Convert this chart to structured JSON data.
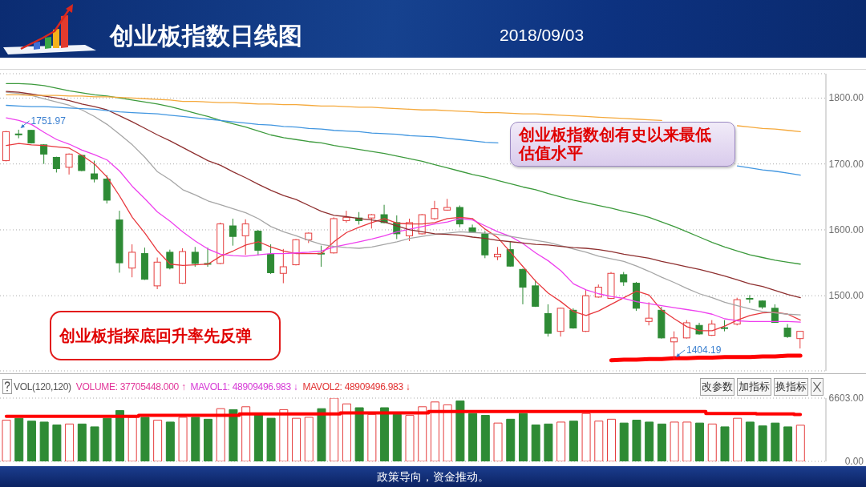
{
  "chart_data": [
    {
      "type": "candlestick",
      "title": "创业板指数日线图",
      "subtitle": "2018/09/03",
      "categories": [
        null,
        null,
        null,
        null,
        null,
        null,
        null,
        null,
        null,
        null,
        null,
        null,
        null,
        null,
        null,
        null,
        null,
        null,
        null,
        null,
        null,
        null,
        null,
        null,
        null,
        null,
        null,
        null,
        null,
        null,
        null,
        null,
        null,
        null,
        null,
        null,
        null,
        null,
        null,
        null,
        null,
        null,
        null,
        null,
        null,
        null,
        null,
        null,
        null,
        null,
        null,
        null,
        null,
        null,
        null,
        null,
        null,
        null,
        null,
        null,
        null,
        null,
        null,
        null
      ],
      "ohlc": [
        [
          1705,
          1750,
          1704,
          1749
        ],
        [
          1745.5,
          1751.97,
          1739,
          1745
        ],
        [
          1751,
          1751.5,
          1731,
          1732
        ],
        [
          1729,
          1730,
          1700,
          1715
        ],
        [
          1710,
          1711,
          1687,
          1693
        ],
        [
          1695,
          1716,
          1684,
          1715
        ],
        [
          1713,
          1714,
          1689,
          1690
        ],
        [
          1685,
          1705,
          1672,
          1677
        ],
        [
          1677,
          1683,
          1640,
          1645
        ],
        [
          1615,
          1629,
          1535,
          1550
        ],
        [
          1542,
          1578,
          1528,
          1566
        ],
        [
          1564,
          1573,
          1524,
          1525
        ],
        [
          1515,
          1558,
          1510,
          1551
        ],
        [
          1566,
          1570,
          1540,
          1542
        ],
        [
          1519,
          1572,
          1518,
          1567
        ],
        [
          1566,
          1574,
          1544,
          1549
        ],
        [
          1549,
          1573,
          1544,
          1548
        ],
        [
          1549,
          1611,
          1548,
          1609
        ],
        [
          1606,
          1617,
          1576,
          1590
        ],
        [
          1591,
          1616,
          1562,
          1609
        ],
        [
          1598,
          1600,
          1561,
          1569
        ],
        [
          1563,
          1578,
          1533,
          1535
        ],
        [
          1534,
          1571,
          1519,
          1544
        ],
        [
          1547,
          1586,
          1546,
          1585
        ],
        [
          1585,
          1596,
          1580,
          1595
        ],
        [
          1564.5,
          1576,
          1544,
          1564
        ],
        [
          1565,
          1619,
          1564,
          1617
        ],
        [
          1614,
          1629,
          1611,
          1619
        ],
        [
          1618,
          1627,
          1608,
          1614
        ],
        [
          1618,
          1624,
          1602,
          1623
        ],
        [
          1623,
          1638,
          1610,
          1611
        ],
        [
          1611,
          1622,
          1586,
          1594
        ],
        [
          1591,
          1617,
          1583,
          1611
        ],
        [
          1594,
          1624,
          1593,
          1623
        ],
        [
          1617,
          1644,
          1615,
          1632
        ],
        [
          1630,
          1647,
          1629,
          1634
        ],
        [
          1634,
          1637,
          1604,
          1609
        ],
        [
          1603,
          1608,
          1596,
          1596.5
        ],
        [
          1594,
          1598,
          1557,
          1562
        ],
        [
          1559,
          1574,
          1554,
          1563
        ],
        [
          1570,
          1582,
          1544,
          1545
        ],
        [
          1540,
          1541,
          1487,
          1513
        ],
        [
          1515,
          1524,
          1483,
          1484
        ],
        [
          1473,
          1487,
          1438,
          1443
        ],
        [
          1446,
          1482,
          1438,
          1481
        ],
        [
          1478,
          1481,
          1450,
          1451
        ],
        [
          1446,
          1509,
          1445,
          1500
        ],
        [
          1498,
          1517,
          1497,
          1513
        ],
        [
          1496,
          1536,
          1495,
          1534
        ],
        [
          1532,
          1536,
          1515,
          1521
        ],
        [
          1519,
          1521,
          1477,
          1481
        ],
        [
          1461,
          1490,
          1455,
          1466
        ],
        [
          1478,
          1483,
          1435,
          1436
        ],
        [
          1430,
          1446,
          1404.19,
          1436
        ],
        [
          1436,
          1463,
          1435,
          1459
        ],
        [
          1455,
          1459,
          1441,
          1442
        ],
        [
          1440,
          1463,
          1439,
          1457
        ],
        [
          1451.5,
          1463,
          1446,
          1451
        ],
        [
          1457,
          1497,
          1455,
          1494
        ],
        [
          1496,
          1501,
          1489,
          1495.5
        ],
        [
          1492,
          1493,
          1480,
          1483
        ],
        [
          1481,
          1487,
          1459,
          1459.5
        ],
        [
          1451,
          1457,
          1436,
          1438
        ],
        [
          1435,
          1446,
          1420,
          1446
        ]
      ],
      "colors": [
        "#e53e3e",
        "#2e8b35",
        "#2e8b35",
        "#2e8b35",
        "#2e8b35",
        "#e53e3e",
        "#2e8b35",
        "#2e8b35",
        "#2e8b35",
        "#2e8b35",
        "#e53e3e",
        "#2e8b35",
        "#e53e3e",
        "#2e8b35",
        "#e53e3e",
        "#2e8b35",
        "#2e8b35",
        "#e53e3e",
        "#2e8b35",
        "#e53e3e",
        "#2e8b35",
        "#2e8b35",
        "#e53e3e",
        "#e53e3e",
        "#e53e3e",
        "#2e8b35",
        "#e53e3e",
        "#e53e3e",
        "#2e8b35",
        "#e53e3e",
        "#2e8b35",
        "#2e8b35",
        "#e53e3e",
        "#e53e3e",
        "#e53e3e",
        "#e53e3e",
        "#2e8b35",
        "#2e8b35",
        "#2e8b35",
        "#e53e3e",
        "#2e8b35",
        "#2e8b35",
        "#2e8b35",
        "#2e8b35",
        "#e53e3e",
        "#2e8b35",
        "#e53e3e",
        "#e53e3e",
        "#e53e3e",
        "#2e8b35",
        "#2e8b35",
        "#e53e3e",
        "#2e8b35",
        "#e53e3e",
        "#e53e3e",
        "#2e8b35",
        "#e53e3e",
        "#2e8b35",
        "#e53e3e",
        "#2e8b35",
        "#2e8b35",
        "#2e8b35",
        "#2e8b35",
        "#e53e3e"
      ],
      "series": [
        {
          "type": "line",
          "color": "#e8383d",
          "values": [
            1728,
            1731,
            1729,
            1728,
            1726,
            1724,
            1713,
            1700,
            1680,
            1651,
            1619,
            1595,
            1568,
            1548,
            1546,
            1547,
            1548,
            1560,
            1568,
            1577,
            1582,
            1574,
            1568,
            1564,
            1564,
            1564,
            1582,
            1596,
            1604,
            1611,
            1617,
            1610,
            1609,
            1609,
            1611,
            1617,
            1619,
            1617,
            1601,
            1588,
            1566,
            1544,
            1522,
            1504,
            1491,
            1476,
            1470,
            1477,
            1487,
            1497,
            1507,
            1501,
            1478,
            1465,
            1453,
            1447,
            1447,
            1454,
            1463,
            1470,
            1474,
            1475,
            1472,
            1463
          ]
        },
        {
          "type": "line",
          "color": "#ee40ee",
          "values": [
            1770,
            1766,
            1760,
            1748,
            1737,
            1730,
            1721,
            1714,
            1706,
            1689,
            1666,
            1647,
            1627,
            1613,
            1597,
            1583,
            1571,
            1563,
            1561,
            1560,
            1562,
            1564,
            1564,
            1565,
            1566,
            1568,
            1574,
            1578,
            1582,
            1586,
            1591,
            1597,
            1601,
            1605,
            1609,
            1612,
            1617,
            1615,
            1606,
            1597,
            1590,
            1579,
            1565,
            1553,
            1538,
            1518,
            1509,
            1503,
            1499,
            1496,
            1491,
            1488,
            1485,
            1482,
            1479,
            1476,
            1472,
            1465,
            1462,
            1461,
            1461,
            1461,
            1461,
            1460
          ]
        },
        {
          "type": "line",
          "color": "#a6a6a6",
          "values": [
            1809,
            1807,
            1804,
            1799,
            1794,
            1789,
            1782,
            1772,
            1760,
            1745,
            1729,
            1710,
            1688,
            1676,
            1661,
            1653,
            1644,
            1638,
            1632,
            1626,
            1617,
            1605,
            1597,
            1591,
            1584,
            1578,
            1575,
            1573,
            1572,
            1574,
            1578,
            1582,
            1587,
            1590,
            1593,
            1595,
            1597,
            1596,
            1595,
            1593,
            1590,
            1587,
            1584,
            1581,
            1576,
            1571,
            1566,
            1560,
            1556,
            1552,
            1545,
            1537,
            1528,
            1520,
            1511,
            1503,
            1497,
            1490,
            1485,
            1480,
            1476,
            1474,
            1472,
            1471
          ]
        },
        {
          "type": "line",
          "color": "#8e2f2f",
          "values": [
            1810,
            1809,
            1806,
            1803,
            1800,
            1796,
            1791,
            1787,
            1782,
            1773,
            1764,
            1754,
            1744,
            1735,
            1725,
            1715,
            1705,
            1698,
            1688,
            1679,
            1669,
            1660,
            1652,
            1646,
            1637,
            1628,
            1622,
            1620,
            1617,
            1615,
            1612,
            1606,
            1600,
            1597,
            1594,
            1593,
            1592,
            1589,
            1587,
            1584,
            1582,
            1580,
            1578,
            1577,
            1575,
            1573,
            1572,
            1570,
            1567,
            1563,
            1560,
            1557,
            1552,
            1548,
            1544,
            1540,
            1535,
            1530,
            1524,
            1518,
            1514,
            1508,
            1502,
            1497
          ]
        },
        {
          "type": "line",
          "color": "#3c9a3c",
          "values": [
            1822,
            1822,
            1821,
            1819,
            1815,
            1811,
            1808,
            1805,
            1803,
            1800,
            1797,
            1794,
            1791,
            1787,
            1782,
            1777,
            1772,
            1766,
            1761,
            1756,
            1750,
            1744,
            1740,
            1737,
            1734,
            1732,
            1728,
            1725,
            1722,
            1719,
            1716,
            1712,
            1708,
            1704,
            1699,
            1694,
            1689,
            1684,
            1680,
            1675,
            1670,
            1665,
            1661,
            1655,
            1650,
            1645,
            1641,
            1637,
            1633,
            1628,
            1624,
            1619,
            1612,
            1605,
            1597,
            1589,
            1581,
            1574,
            1568,
            1562,
            1558,
            1554,
            1551,
            1548
          ]
        },
        {
          "type": "line",
          "color": "#4196e0",
          "values": [
            1789,
            1788,
            1787,
            1787,
            1786,
            1785,
            1784,
            1783,
            1781,
            1779,
            1778,
            1777,
            1776,
            1774,
            1772,
            1770,
            1768,
            1766,
            1764,
            1762,
            1760,
            1759,
            1757,
            1756,
            1754,
            1753,
            1751,
            1750,
            1749,
            1747,
            1746,
            1745,
            1743,
            1742,
            1741,
            1739,
            1737,
            1735,
            1733,
            1732,
            null,
            null,
            null,
            null,
            null,
            null,
            null,
            null,
            null,
            null,
            null,
            null,
            null,
            null,
            null,
            null,
            null,
            null,
            1697,
            1694,
            1691,
            1689,
            1686,
            1683
          ]
        },
        {
          "type": "line",
          "color": "#f5a93c",
          "values": [
            1805,
            1805,
            1804,
            1804,
            1804,
            1803,
            1803,
            1802,
            1802,
            1801,
            1800,
            1799,
            1798,
            1797,
            1795,
            1795,
            1794,
            1793,
            1793,
            1792,
            1791,
            1791,
            1790,
            1790,
            1789,
            1788,
            1788,
            1787,
            1786,
            1786,
            1785,
            1784,
            1783,
            1782,
            1782,
            1781,
            1780,
            1779,
            1778,
            1778,
            1777,
            1776,
            1776,
            1775,
            1774,
            1773,
            1772,
            1771,
            1770,
            1769,
            1768,
            1767,
            1766,
            null,
            null,
            null,
            null,
            null,
            1758,
            1756,
            1754,
            1753,
            1751,
            1749
          ]
        },
        {
          "type": "line",
          "color": "#ff0000",
          "values": [
            null,
            null,
            null,
            null,
            null,
            null,
            null,
            null,
            null,
            null,
            null,
            null,
            null,
            null,
            null,
            null,
            null,
            null,
            null,
            null,
            null,
            null,
            null,
            null,
            null,
            null,
            null,
            null,
            null,
            null,
            null,
            null,
            null,
            null,
            null,
            null,
            null,
            null,
            null,
            null,
            null,
            null,
            null,
            null,
            null,
            null,
            null,
            null,
            1402,
            1403,
            1403,
            1404,
            1404,
            1405,
            1405,
            1406,
            1406,
            1407,
            1407,
            1407,
            1408,
            1408,
            1409,
            1409
          ]
        }
      ],
      "ylim": [
        1386,
        1837
      ],
      "yticks": [
        {
          "value": 1500,
          "label": "1500.00"
        },
        {
          "value": 1600,
          "label": "1600.00"
        },
        {
          "value": 1700,
          "label": "1700.00"
        },
        {
          "value": 1800,
          "label": "1800.00"
        }
      ],
      "grid": "y",
      "tick_labels": "y",
      "annotations": [
        {
          "text": "1751.97",
          "y": 1751.97
        },
        {
          "text": "1404.19",
          "y": 1404.19
        },
        "创业板指数创有史以来最低估值水平",
        "创业板指探底回升率先反弹",
        "政策导向，资金推动。"
      ]
    },
    {
      "type": "bar",
      "categories": [
        null,
        null,
        null,
        null,
        null,
        null,
        null,
        null,
        null,
        null,
        null,
        null,
        null,
        null,
        null,
        null,
        null,
        null,
        null,
        null,
        null,
        null,
        null,
        null,
        null,
        null,
        null,
        null,
        null,
        null,
        null,
        null,
        null,
        null,
        null,
        null,
        null,
        null,
        null,
        null,
        null,
        null,
        null,
        null,
        null,
        null,
        null,
        null,
        null,
        null,
        null,
        null,
        null,
        null,
        null,
        null,
        null,
        null,
        null,
        null,
        null,
        null,
        null,
        null
      ],
      "series": [
        {
          "type": "bar",
          "colors": [
            "#e53e3e",
            "#2e8b35",
            "#2e8b35",
            "#2e8b35",
            "#2e8b35",
            "#e53e3e",
            "#2e8b35",
            "#2e8b35",
            "#2e8b35",
            "#2e8b35",
            "#e53e3e",
            "#2e8b35",
            "#e53e3e",
            "#2e8b35",
            "#e53e3e",
            "#2e8b35",
            "#2e8b35",
            "#e53e3e",
            "#2e8b35",
            "#e53e3e",
            "#2e8b35",
            "#2e8b35",
            "#e53e3e",
            "#e53e3e",
            "#e53e3e",
            "#2e8b35",
            "#e53e3e",
            "#e53e3e",
            "#2e8b35",
            "#e53e3e",
            "#2e8b35",
            "#2e8b35",
            "#e53e3e",
            "#e53e3e",
            "#e53e3e",
            "#e53e3e",
            "#2e8b35",
            "#2e8b35",
            "#2e8b35",
            "#e53e3e",
            "#2e8b35",
            "#2e8b35",
            "#2e8b35",
            "#2e8b35",
            "#e53e3e",
            "#2e8b35",
            "#e53e3e",
            "#e53e3e",
            "#e53e3e",
            "#2e8b35",
            "#2e8b35",
            "#2e8b35",
            "#2e8b35",
            "#e53e3e",
            "#e53e3e",
            "#2e8b35",
            "#e53e3e",
            "#2e8b35",
            "#e53e3e",
            "#2e8b35",
            "#2e8b35",
            "#2e8b35",
            "#2e8b35",
            "#e53e3e"
          ],
          "values": [
            4300,
            4500,
            4200,
            4100,
            3800,
            3900,
            3900,
            3600,
            4500,
            5300,
            4600,
            4600,
            4300,
            4100,
            4600,
            4600,
            4400,
            5500,
            5400,
            5700,
            4900,
            4500,
            5400,
            4500,
            4600,
            5500,
            6603,
            6000,
            5600,
            4900,
            5600,
            4900,
            4800,
            5700,
            6200,
            5900,
            6300,
            5000,
            4800,
            4000,
            4400,
            5000,
            3800,
            3900,
            4100,
            4200,
            5000,
            4200,
            4400,
            4000,
            4300,
            4100,
            3900,
            4100,
            4100,
            4000,
            3900,
            3600,
            4500,
            4100,
            3700,
            4000,
            3600,
            3770.5
          ]
        },
        {
          "type": "step",
          "color": "#ff0000",
          "values": [
            4700,
            4700,
            4700,
            4700,
            4700,
            4700,
            4700,
            4700,
            4700,
            4700,
            4700,
            4800,
            4800,
            4800,
            4800,
            4800,
            4800,
            4800,
            4800,
            4950,
            4950,
            4950,
            4950,
            4950,
            4950,
            4950,
            4950,
            5050,
            5050,
            5050,
            5050,
            5050,
            5050,
            5050,
            5200,
            5200,
            5200,
            5200,
            5200,
            5200,
            5200,
            5200,
            5200,
            5200,
            5200,
            5200,
            5200,
            5200,
            5200,
            5200,
            5200,
            5200,
            5200,
            5200,
            5200,
            5200,
            5000,
            5000,
            5000,
            5000,
            4950,
            4950,
            4950,
            4900
          ]
        }
      ],
      "ylim": [
        0,
        6603
      ],
      "yticks": [
        {
          "value": 0,
          "label": "0.00"
        },
        {
          "value": 6603,
          "label": "6603.00"
        }
      ],
      "grid": "y",
      "tick_labels": "y",
      "annotations": [
        "VOL(120,120)",
        "VOLUME: 37705448.000 ↑",
        "MAVOL1: 48909496.983 ↓",
        "MAVOL2: 48909496.983 ↓",
        "改参数",
        "加指标",
        "换指标"
      ]
    }
  ]
}
